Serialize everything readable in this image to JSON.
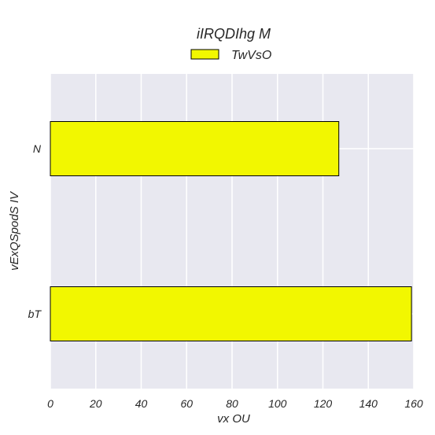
{
  "chart_data": {
    "type": "bar",
    "orientation": "horizontal",
    "title": "iIRQDIhg  M",
    "xlabel": "vx OU",
    "ylabel": "vExQSpodS IV",
    "categories": [
      "N",
      "bT"
    ],
    "series": [
      {
        "name": "TwVsO",
        "values": [
          127,
          159
        ],
        "color": "#f2f700"
      }
    ],
    "xlim": [
      0,
      160
    ],
    "xticks": [
      0,
      20,
      40,
      60,
      80,
      100,
      120,
      140,
      160
    ],
    "grid": true,
    "legend": "top-center",
    "colors": {
      "plot_background": "#e8e8f0",
      "grid": "#ffffff",
      "bar_edge": "#000000",
      "text": "#262626"
    }
  }
}
